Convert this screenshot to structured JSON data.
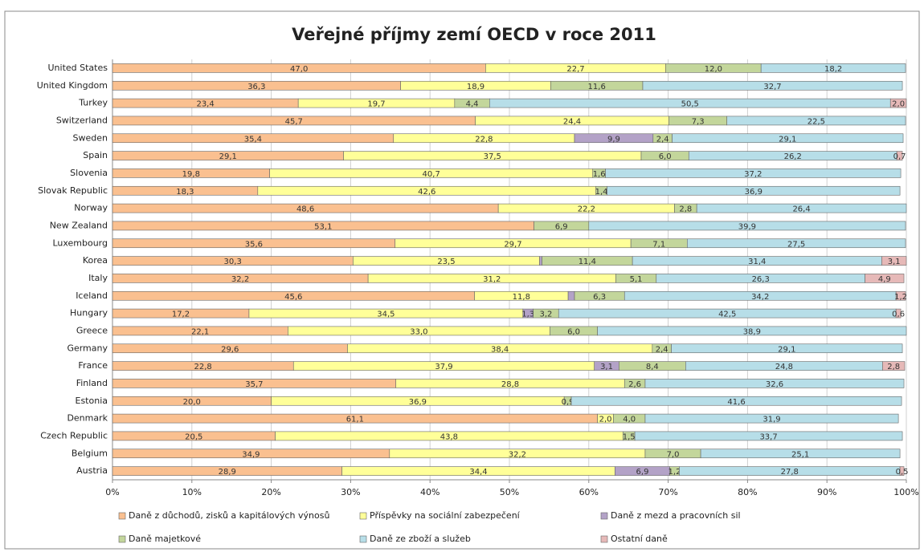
{
  "chart_data": {
    "type": "stacked-barh",
    "title": "Veřejné příjmy zemí OECD v roce 2011",
    "categories": [
      "United States",
      "United Kingdom",
      "Turkey",
      "Switzerland",
      "Sweden",
      "Spain",
      "Slovenia",
      "Slovak Republic",
      "Norway",
      "New Zealand",
      "Luxembourg",
      "Korea",
      "Italy",
      "Iceland",
      "Hungary",
      "Greece",
      "Germany",
      "France",
      "Finland",
      "Estonia",
      "Denmark",
      "Czech Republic",
      "Belgium",
      "Austria"
    ],
    "xlim": [
      0,
      100
    ],
    "xticks": [
      {
        "value": 0,
        "label": "0%"
      },
      {
        "value": 10,
        "label": "10%"
      },
      {
        "value": 20,
        "label": "20%"
      },
      {
        "value": 30,
        "label": "30%"
      },
      {
        "value": 40,
        "label": "40%"
      },
      {
        "value": 50,
        "label": "50%"
      },
      {
        "value": 60,
        "label": "60%"
      },
      {
        "value": 70,
        "label": "70%"
      },
      {
        "value": 80,
        "label": "80%"
      },
      {
        "value": 90,
        "label": "90%"
      },
      {
        "value": 100,
        "label": "100%"
      }
    ],
    "grid": true,
    "legend": "bottom",
    "series": [
      {
        "name": "Daně z důchodů, zisků a kapitálových výnosů",
        "color": "#fac090",
        "values": [
          47.0,
          36.3,
          23.4,
          45.7,
          35.4,
          29.1,
          19.8,
          18.3,
          48.6,
          53.1,
          35.6,
          30.3,
          32.2,
          45.6,
          17.2,
          22.1,
          29.6,
          22.8,
          35.7,
          20.0,
          61.1,
          20.5,
          34.9,
          28.9
        ],
        "value_labels": [
          "47,0",
          "36,3",
          "23,4",
          "45,7",
          "35,4",
          "29,1",
          "19,8",
          "18,3",
          "48,6",
          "53,1",
          "35,6",
          "30,3",
          "32,2",
          "45,6",
          "17,2",
          "22,1",
          "29,6",
          "22,8",
          "35,7",
          "20,0",
          "61,1",
          "20,5",
          "34,9",
          "28,9"
        ]
      },
      {
        "name": "Příspěvky na sociální zabezpečení",
        "color": "#ffff99",
        "values": [
          22.7,
          18.9,
          19.7,
          24.4,
          22.8,
          37.5,
          40.7,
          42.6,
          22.2,
          null,
          29.7,
          23.5,
          31.2,
          11.8,
          34.5,
          33.0,
          38.4,
          37.9,
          28.8,
          36.9,
          2.0,
          43.8,
          32.2,
          34.4
        ],
        "value_labels": [
          "22,7",
          "18,9",
          "19,7",
          "24,4",
          "22,8",
          "37,5",
          "40,7",
          "42,6",
          "22,2",
          null,
          "29,7",
          "23,5",
          "31,2",
          "11,8",
          "34,5",
          "33,0",
          "38,4",
          "37,9",
          "28,8",
          "36,9",
          "2,0",
          "43,8",
          "32,2",
          "34,4"
        ]
      },
      {
        "name": "Daně z mezd a pracovních sil",
        "color": "#b3a2c7",
        "values": [
          null,
          null,
          null,
          null,
          9.9,
          null,
          null,
          null,
          null,
          null,
          null,
          0.3,
          null,
          0.8,
          1.3,
          null,
          null,
          3.1,
          null,
          null,
          null,
          null,
          null,
          6.9
        ],
        "value_labels": [
          null,
          null,
          null,
          null,
          "9,9",
          null,
          null,
          null,
          null,
          null,
          null,
          null,
          null,
          null,
          "1,3",
          null,
          null,
          "3,1",
          null,
          null,
          null,
          null,
          null,
          "6,9"
        ]
      },
      {
        "name": "Daně majetkové",
        "color": "#c3d69b",
        "values": [
          12.0,
          11.6,
          4.4,
          7.3,
          2.4,
          6.0,
          1.6,
          1.4,
          2.8,
          6.9,
          7.1,
          11.4,
          5.1,
          6.3,
          3.2,
          6.0,
          2.4,
          8.4,
          2.6,
          0.9,
          4.0,
          1.5,
          7.0,
          1.2
        ],
        "value_labels": [
          "12,0",
          "11,6",
          "4,4",
          "7,3",
          "2,4",
          "6,0",
          "1,6",
          "1,4",
          "2,8",
          "6,9",
          "7,1",
          "11,4",
          "5,1",
          "6,3",
          "3,2",
          "6,0",
          "2,4",
          "8,4",
          "2,6",
          "0,9",
          "4,0",
          "1,5",
          "7,0",
          "1,2"
        ]
      },
      {
        "name": "Daně ze zboží a služeb",
        "color": "#b7dee8",
        "values": [
          18.2,
          32.7,
          50.5,
          22.5,
          29.1,
          26.2,
          37.2,
          36.9,
          26.4,
          39.9,
          27.5,
          31.4,
          26.3,
          34.2,
          42.5,
          38.9,
          29.1,
          24.8,
          32.6,
          41.6,
          31.9,
          33.7,
          25.1,
          27.8
        ],
        "value_labels": [
          "18,2",
          "32,7",
          "50,5",
          "22,5",
          "29,1",
          "26,2",
          "37,2",
          "36,9",
          "26,4",
          "39,9",
          "27,5",
          "31,4",
          "26,3",
          "34,2",
          "42,5",
          "38,9",
          "29,1",
          "24,8",
          "32,6",
          "41,6",
          "31,9",
          "33,7",
          "25,1",
          "27,8"
        ]
      },
      {
        "name": "Ostatní daně",
        "color": "#e6b9b8",
        "values": [
          null,
          null,
          2.0,
          null,
          null,
          0.7,
          null,
          null,
          null,
          null,
          null,
          3.1,
          4.9,
          1.2,
          0.6,
          null,
          null,
          2.8,
          null,
          null,
          null,
          null,
          null,
          0.5
        ],
        "value_labels": [
          null,
          null,
          "2,0",
          null,
          null,
          "0,7",
          null,
          null,
          null,
          null,
          null,
          "3,1",
          "4,9",
          "1,2",
          "0,6",
          null,
          null,
          "2,8",
          null,
          null,
          null,
          null,
          null,
          "0,5"
        ]
      }
    ]
  }
}
